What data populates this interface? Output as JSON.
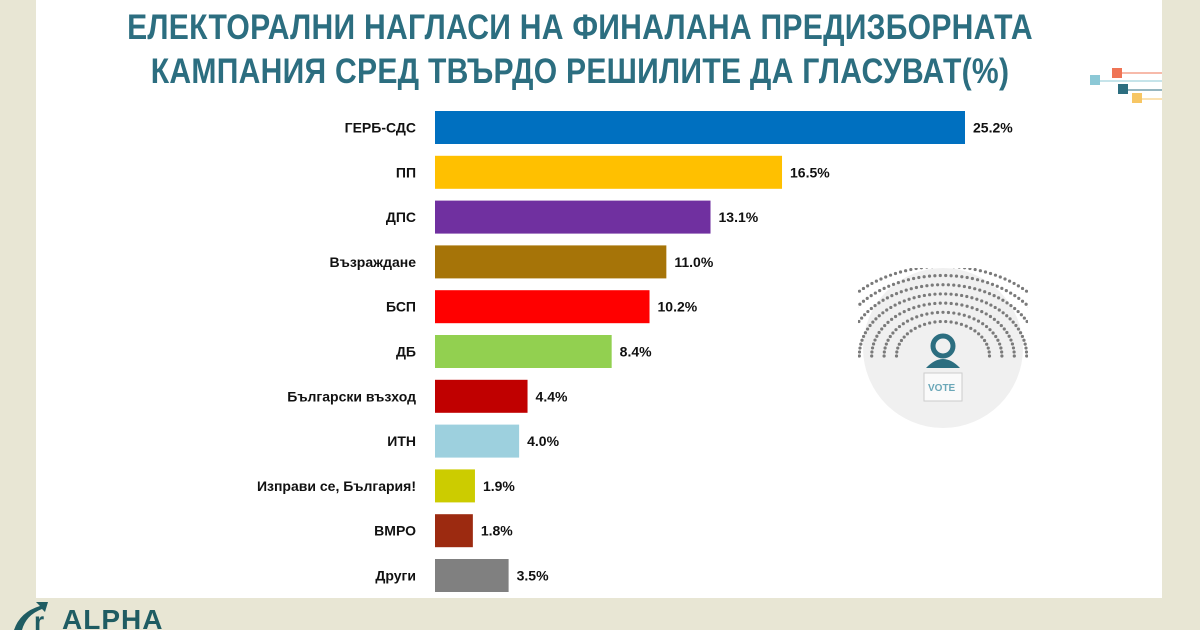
{
  "chart_data": {
    "type": "bar",
    "orientation": "horizontal",
    "title": "ЕЛЕКТОРАЛНИ НАГЛАСИ НА ФИНАЛАНА ПРЕДИЗБОРНАТА КАМПАНИЯ СРЕД ТВЪРДО РЕШИЛИТЕ ДА ГЛАСУВАТ(%)",
    "title_lines": [
      "ЕЛЕКТОРАЛНИ НАГЛАСИ НА ФИНАЛАНА ПРЕДИЗБОРНАТА",
      "КАМПАНИЯ СРЕД ТВЪРДО РЕШИЛИТЕ ДА ГЛАСУВАТ(%)"
    ],
    "categories": [
      "ГЕРБ-СДС",
      "ПП",
      "ДПС",
      "Възраждане",
      "БСП",
      "ДБ",
      "Български възход",
      "ИТН",
      "Изправи се, България!",
      "ВМРО",
      "Други"
    ],
    "values": [
      25.2,
      16.5,
      13.1,
      11.0,
      10.2,
      8.4,
      4.4,
      4.0,
      1.9,
      1.8,
      3.5
    ],
    "value_labels": [
      "25.2%",
      "16.5%",
      "13.1%",
      "11.0%",
      "10.2%",
      "8.4%",
      "4.4%",
      "4.0%",
      "1.9%",
      "1.8%",
      "3.5%"
    ],
    "colors": [
      "#0070c0",
      "#ffc000",
      "#7030a0",
      "#a67408",
      "#ff0000",
      "#92d050",
      "#c00000",
      "#9dd0de",
      "#cccc00",
      "#9c2a10",
      "#808080"
    ],
    "xlim": [
      0,
      25.2
    ],
    "grid": false,
    "xlabel": "",
    "ylabel": ""
  },
  "logo": {
    "text": "ALPHA"
  },
  "emblem": {
    "text": "VOTE"
  }
}
